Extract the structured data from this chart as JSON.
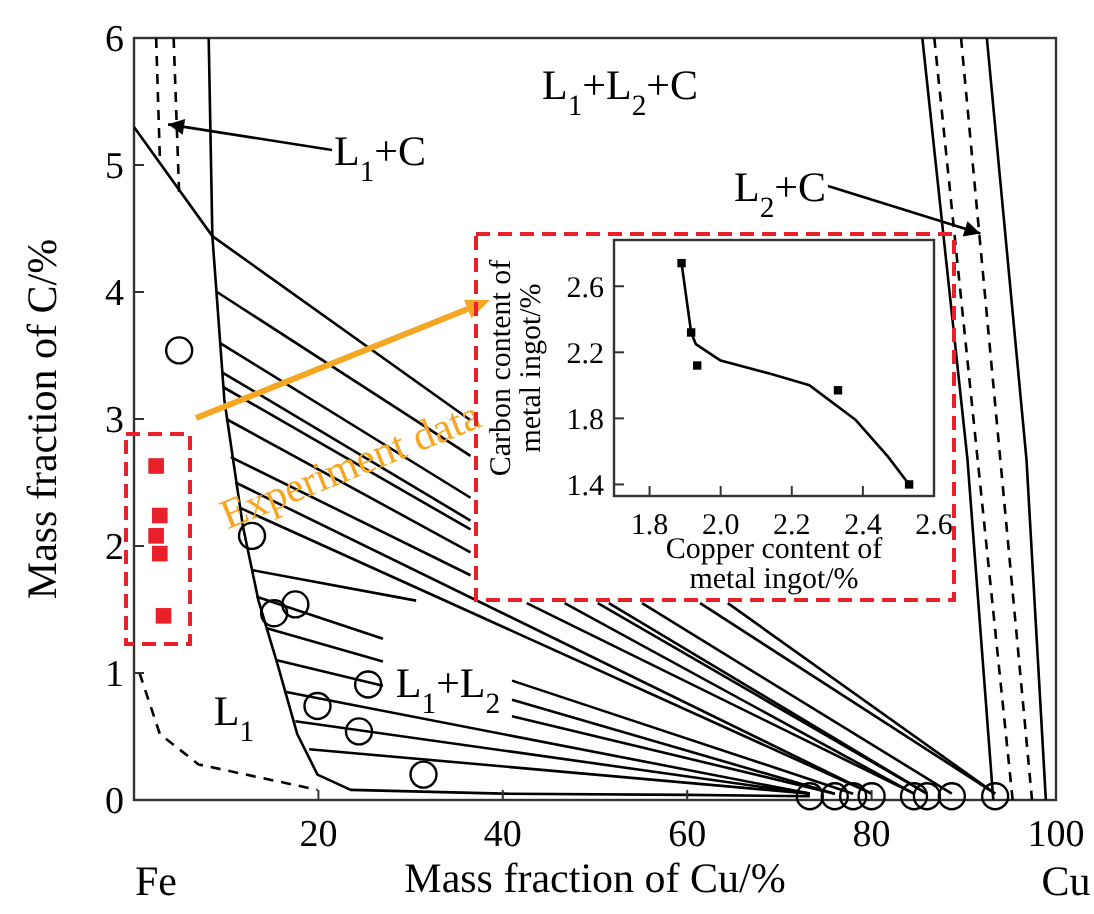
{
  "chart_data": [
    {
      "type": "line",
      "xlabel": "Mass fraction of Cu/%",
      "ylabel": "Mass fraction of C/%",
      "xlim": [
        0,
        100
      ],
      "ylim": [
        0,
        6
      ],
      "xticks": [
        20,
        40,
        60,
        80,
        100
      ],
      "yticks": [
        0,
        1,
        2,
        3,
        4,
        5,
        6
      ],
      "grid": false,
      "series": [
        {
          "color": "#000000",
          "line_style": "solid",
          "x": [
            8.1,
            8.5,
            9.8,
            11.8,
            13.5,
            15.6,
            17.7,
            19.9,
            23.5,
            40,
            60,
            73.3
          ],
          "values": [
            6,
            4.44,
            3.15,
            2.16,
            1.57,
            1.06,
            0.52,
            0.2,
            0.08,
            0.05,
            0.04,
            0.03
          ]
        },
        {
          "color": "#000000",
          "line_style": "solid",
          "x": [
            0,
            8.5,
            36.5
          ],
          "values": [
            5.3,
            4.44,
            2.99
          ]
        },
        {
          "color": "#000000",
          "line_style": "dashed",
          "x": [
            2.4,
            2.8
          ],
          "values": [
            6,
            5.07
          ]
        },
        {
          "color": "#000000",
          "line_style": "dashed",
          "x": [
            4.3,
            4.9
          ],
          "values": [
            6,
            4.77
          ]
        },
        {
          "color": "#000000",
          "line_style": "solid",
          "x": [
            85.5,
            90.4,
            93.2
          ],
          "values": [
            6,
            2.68,
            0
          ]
        },
        {
          "color": "#000000",
          "line_style": "solid",
          "x": [
            92.5,
            96.8,
            98.9
          ],
          "values": [
            6,
            2.68,
            0
          ]
        },
        {
          "color": "#000000",
          "line_style": "dashed",
          "x": [
            86.8,
            95.3
          ],
          "values": [
            6,
            0
          ]
        },
        {
          "color": "#000000",
          "line_style": "dashed",
          "x": [
            89.7,
            97.4
          ],
          "values": [
            6,
            0
          ]
        },
        {
          "color": "#000000",
          "line_style": "dashed",
          "x": [
            0.6,
            2.8,
            7,
            12.8,
            19.9
          ],
          "values": [
            1.0,
            0.52,
            0.28,
            0.19,
            0.08
          ]
        },
        {
          "color": "#000000",
          "line_style": "solid",
          "x": [
            64.4,
            93.4
          ],
          "values": [
            1.55,
            0.05
          ]
        },
        {
          "color": "#000000",
          "line_style": "solid",
          "x": [
            9.0,
            36.5
          ],
          "values": [
            4.0,
            2.71
          ]
        },
        {
          "color": "#000000",
          "line_style": "solid",
          "x": [
            61.4,
            93.4
          ],
          "values": [
            1.55,
            0.05
          ]
        },
        {
          "color": "#000000",
          "line_style": "solid",
          "x": [
            9.3,
            36.5
          ],
          "values": [
            3.6,
            2.38
          ]
        },
        {
          "color": "#000000",
          "line_style": "solid",
          "x": [
            55.1,
            88.7
          ],
          "values": [
            1.55,
            0.05
          ]
        },
        {
          "color": "#000000",
          "line_style": "solid",
          "x": [
            9.5,
            36.5
          ],
          "values": [
            3.37,
            2.2
          ]
        },
        {
          "color": "#000000",
          "line_style": "solid",
          "x": [
            51.5,
            86
          ],
          "values": [
            1.55,
            0.05
          ]
        },
        {
          "color": "#000000",
          "line_style": "solid",
          "x": [
            9.7,
            36.5
          ],
          "values": [
            3.25,
            2.13
          ]
        },
        {
          "color": "#000000",
          "line_style": "solid",
          "x": [
            50.3,
            86
          ],
          "values": [
            1.55,
            0.05
          ]
        },
        {
          "color": "#000000",
          "line_style": "solid",
          "x": [
            10,
            36.5
          ],
          "values": [
            3.0,
            1.95
          ]
        },
        {
          "color": "#000000",
          "line_style": "solid",
          "x": [
            46.7,
            84.6
          ],
          "values": [
            1.55,
            0.05
          ]
        },
        {
          "color": "#000000",
          "line_style": "solid",
          "x": [
            10.5,
            36.5
          ],
          "values": [
            2.7,
            1.77
          ]
        },
        {
          "color": "#000000",
          "line_style": "solid",
          "x": [
            42.6,
            84.6
          ],
          "values": [
            1.55,
            0.05
          ]
        },
        {
          "color": "#000000",
          "line_style": "solid",
          "x": [
            11,
            80
          ],
          "values": [
            2.5,
            0.05
          ]
        },
        {
          "color": "#000000",
          "line_style": "solid",
          "x": [
            11.5,
            80
          ],
          "values": [
            2.3,
            0.05
          ]
        },
        {
          "color": "#000000",
          "line_style": "solid",
          "x": [
            12.8,
            30.6
          ],
          "values": [
            1.81,
            1.57
          ]
        },
        {
          "color": "#000000",
          "line_style": "solid",
          "x": [
            13.3,
            27
          ],
          "values": [
            1.6,
            1.27
          ]
        },
        {
          "color": "#000000",
          "line_style": "solid",
          "x": [
            41,
            78
          ],
          "values": [
            0.94,
            0.05
          ]
        },
        {
          "color": "#000000",
          "line_style": "solid",
          "x": [
            14.5,
            27
          ],
          "values": [
            1.35,
            1.09
          ]
        },
        {
          "color": "#000000",
          "line_style": "solid",
          "x": [
            41,
            76
          ],
          "values": [
            0.79,
            0.05
          ]
        },
        {
          "color": "#000000",
          "line_style": "solid",
          "x": [
            15.5,
            27
          ],
          "values": [
            1.1,
            0.9
          ]
        },
        {
          "color": "#000000",
          "line_style": "solid",
          "x": [
            41,
            76
          ],
          "values": [
            0.66,
            0.05
          ]
        },
        {
          "color": "#000000",
          "line_style": "solid",
          "x": [
            16.5,
            73.3
          ],
          "values": [
            0.85,
            0.05
          ]
        },
        {
          "color": "#000000",
          "line_style": "solid",
          "x": [
            17.5,
            73.3
          ],
          "values": [
            0.62,
            0.05
          ]
        },
        {
          "color": "#000000",
          "line_style": "solid",
          "x": [
            19,
            73.3
          ],
          "values": [
            0.4,
            0.05
          ]
        },
        {
          "type": "scatter",
          "marker": "circle",
          "color": "#000000",
          "x": [
            4.9,
            12.8,
            15.2,
            17.5,
            19.9,
            25.4,
            24.4,
            31.4,
            73.3,
            76,
            78,
            80,
            84.6,
            86,
            88.7,
            93.4
          ],
          "values": [
            3.54,
            2.08,
            1.47,
            1.54,
            0.74,
            0.91,
            0.54,
            0.2,
            0.03,
            0.03,
            0.03,
            0.03,
            0.03,
            0.03,
            0.03,
            0.03
          ]
        },
        {
          "type": "scatter",
          "marker": "square",
          "color": "#e8202a",
          "x": [
            2.4,
            2.8,
            2.4,
            2.8,
            3.2
          ],
          "values": [
            2.63,
            2.24,
            2.08,
            1.94,
            1.45
          ]
        }
      ],
      "annotations": [
        "L$_{1}$+L$_{2}$+C",
        {
          "text": "L$_{1}$+C",
          "x": 3.7,
          "y": 5.32
        },
        {
          "text": "L$_{2}$+C",
          "x": 91.8,
          "y": 4.46
        },
        "L$_{1}$+L$_{2}$",
        "L$_{1}$",
        "Experiment data",
        "Fe",
        "Cu"
      ]
    },
    {
      "type": "scatter",
      "xlabel": "Copper content of metal ingot/%",
      "ylabel": "Carbon content of metal ingot/%",
      "xlim": [
        1.7,
        2.6
      ],
      "ylim": [
        1.33,
        2.88
      ],
      "xticks": [
        1.8,
        {
          "value": 2,
          "label": "2.0"
        },
        2.2,
        2.4,
        2.6
      ],
      "yticks": [
        1.4,
        1.8,
        2.2,
        2.6
      ],
      "grid": false,
      "series": [
        {
          "type": "line",
          "line_style": "solid",
          "color": "#000000",
          "x": [
            1.89,
            1.917,
            1.93,
            2.0,
            2.14,
            2.25,
            2.38,
            2.47,
            2.53
          ],
          "values": [
            2.74,
            2.32,
            2.25,
            2.15,
            2.07,
            2.0,
            1.79,
            1.57,
            1.4
          ]
        },
        {
          "marker": "square",
          "color": "#000000",
          "x": [
            1.89,
            1.917,
            1.934,
            2.33,
            2.53
          ],
          "values": [
            2.74,
            2.32,
            2.12,
            1.97,
            1.4
          ]
        }
      ]
    }
  ]
}
